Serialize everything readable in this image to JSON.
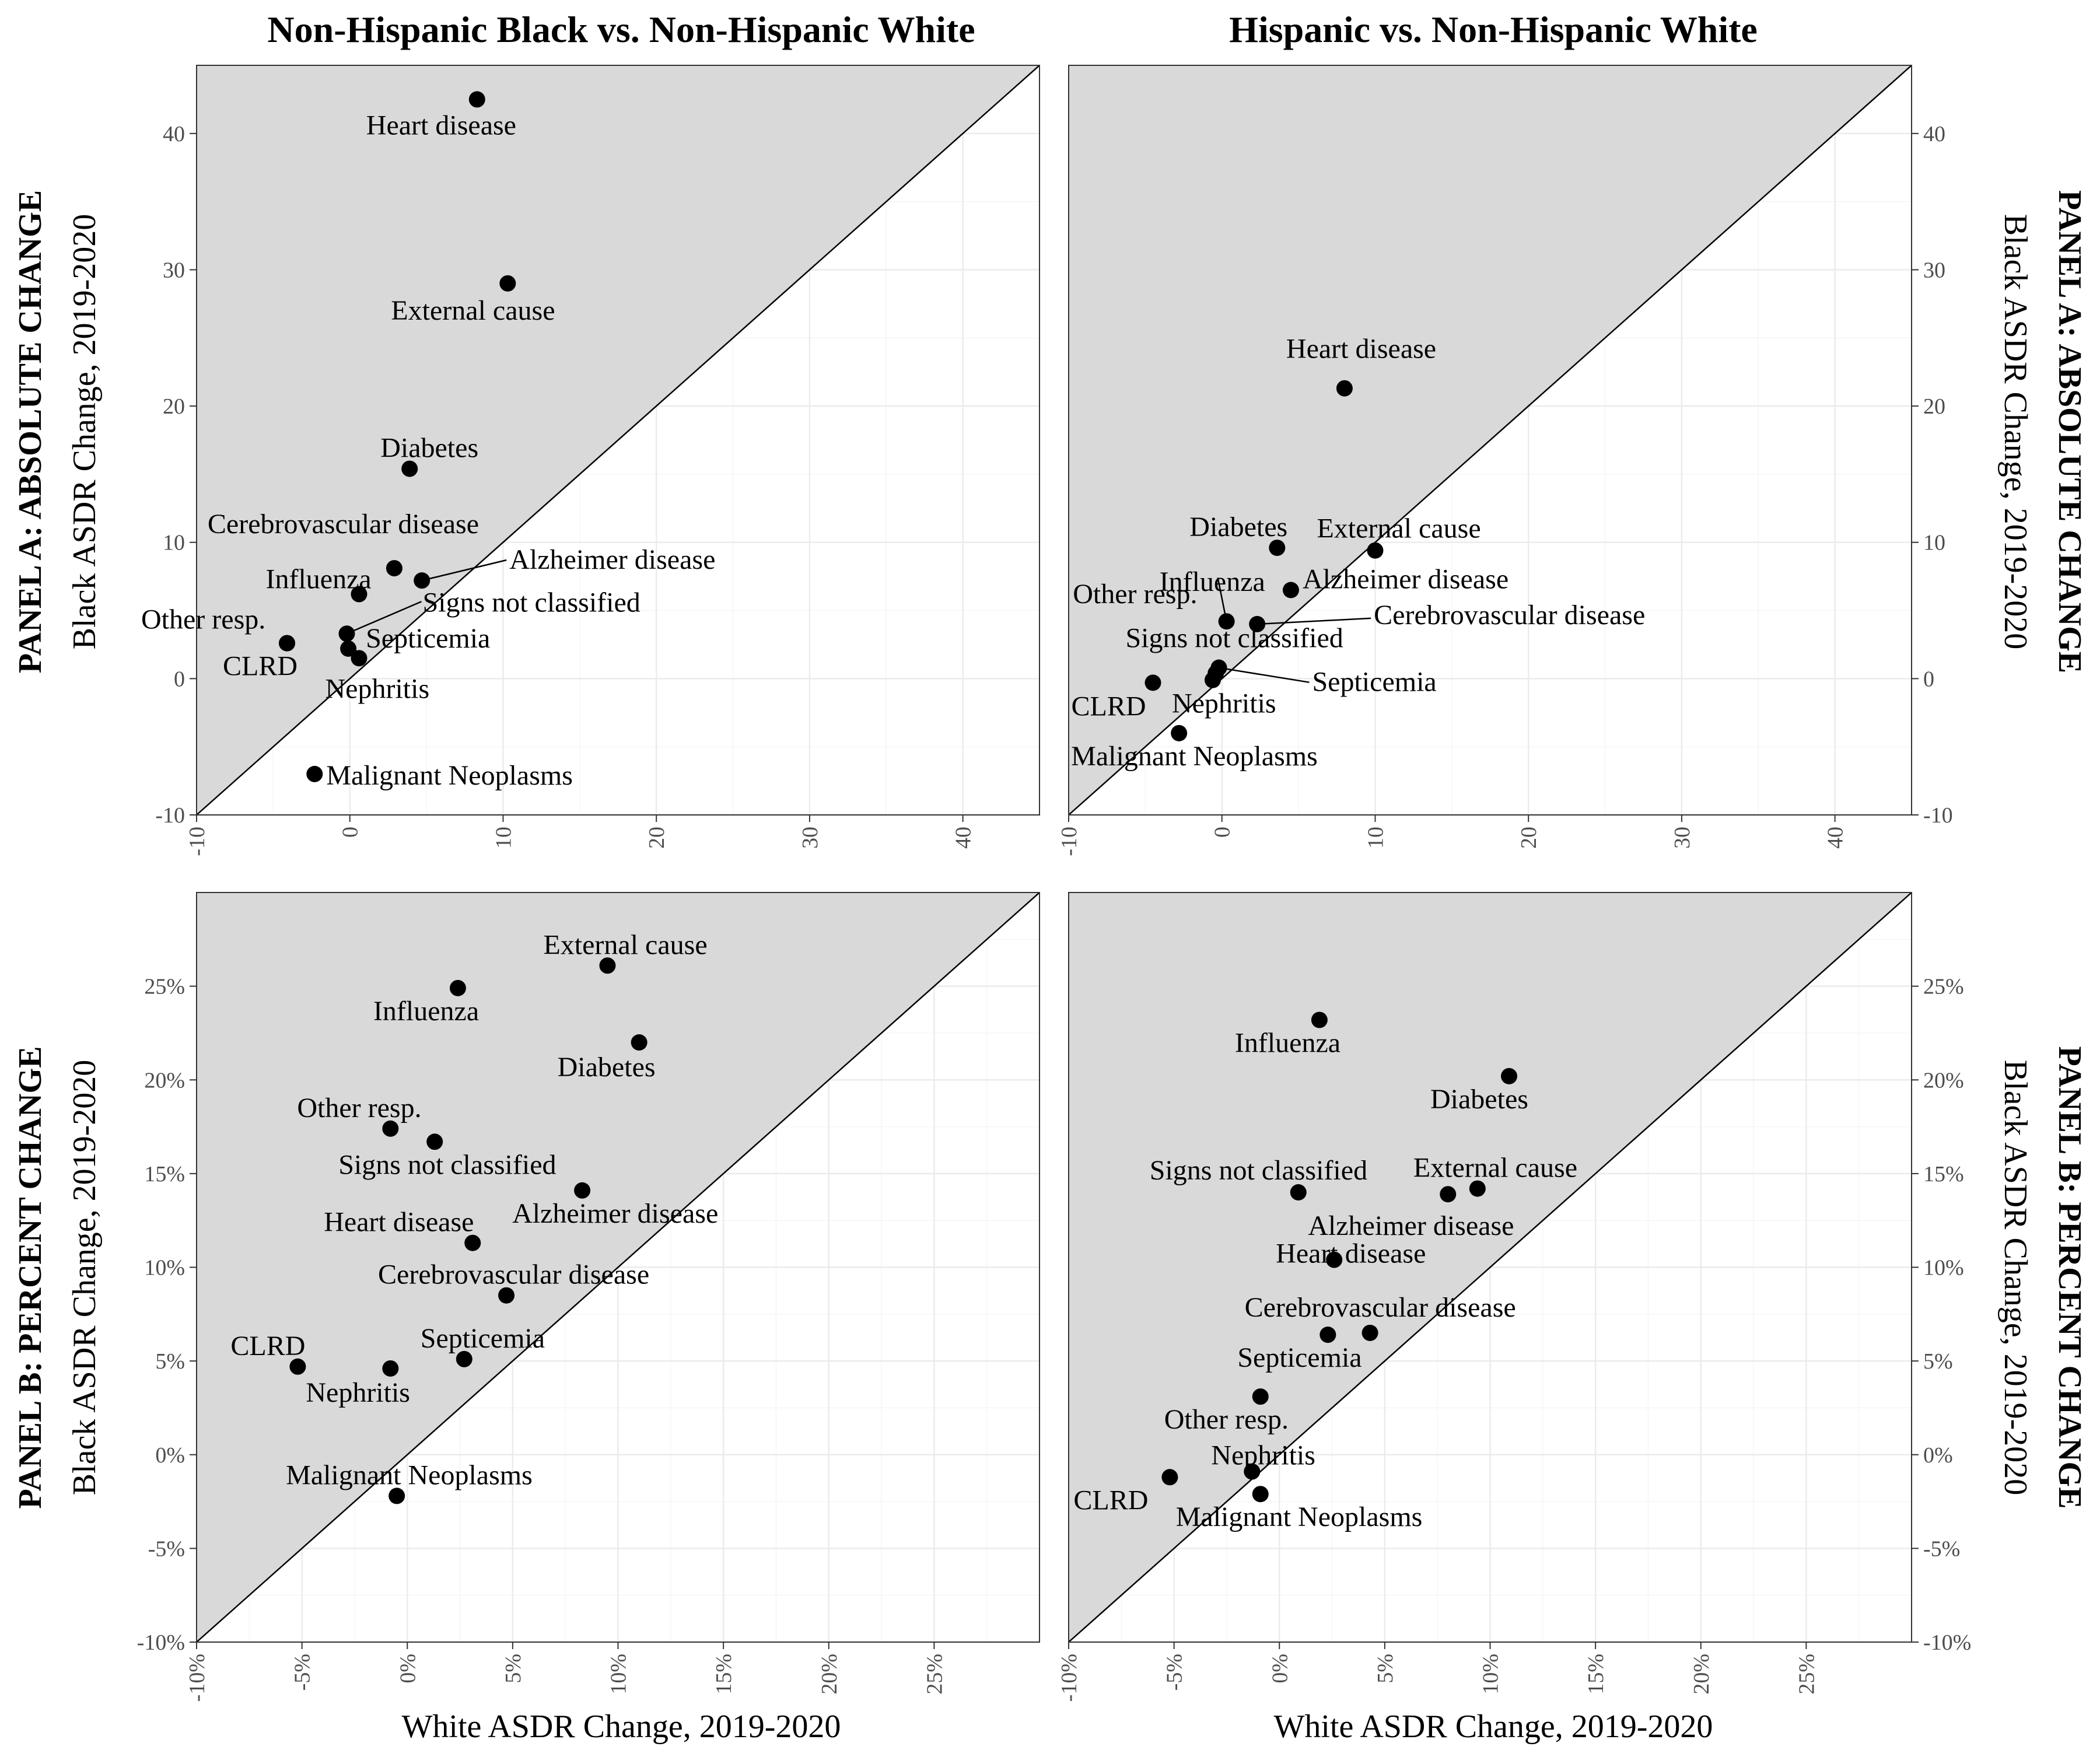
{
  "column_titles": [
    "Non-Hispanic Black vs. Non-Hispanic White",
    "Hispanic vs. Non-Hispanic White"
  ],
  "row_titles": [
    "PANEL A: ABSOLUTE CHANGE",
    "PANEL B: PERCENT CHANGE"
  ],
  "ylabel": "Black ASDR Change, 2019-2020",
  "xlabel": "White ASDR Change, 2019-2020",
  "chart_data": [
    {
      "type": "scatter",
      "panel": "Panel A, Non-Hispanic Black vs. Non-Hispanic White",
      "xlim": [
        -10,
        45
      ],
      "ylim": [
        -10,
        45
      ],
      "xticks": [
        -10,
        0,
        10,
        20,
        30,
        40
      ],
      "yticks": [
        -10,
        0,
        10,
        20,
        30,
        40
      ],
      "tick_labels": [
        "-10",
        "0",
        "10",
        "20",
        "30",
        "40"
      ],
      "reference_line": "y = x",
      "points": [
        {
          "label": "Heart disease",
          "x": 8.3,
          "y": 42.5
        },
        {
          "label": "External cause",
          "x": 10.3,
          "y": 29.0
        },
        {
          "label": "Diabetes",
          "x": 3.9,
          "y": 15.4
        },
        {
          "label": "Cerebrovascular disease",
          "x": 2.9,
          "y": 8.1
        },
        {
          "label": "Alzheimer disease",
          "x": 4.7,
          "y": 7.2
        },
        {
          "label": "Influenza",
          "x": 0.6,
          "y": 6.2
        },
        {
          "label": "Signs not classified",
          "x": -0.2,
          "y": 3.3
        },
        {
          "label": "Other resp.",
          "x": -4.1,
          "y": 2.6
        },
        {
          "label": "Septicemia",
          "x": -0.1,
          "y": 2.2
        },
        {
          "label": "Nephritis",
          "x": 0.6,
          "y": 1.5
        },
        {
          "label": "CLRD",
          "x": -4.1,
          "y": 2.6
        },
        {
          "label": "Malignant Neoplasms",
          "x": -2.3,
          "y": -7.0
        }
      ]
    },
    {
      "type": "scatter",
      "panel": "Panel A, Hispanic vs. Non-Hispanic White",
      "xlim": [
        -10,
        45
      ],
      "ylim": [
        -10,
        45
      ],
      "xticks": [
        -10,
        0,
        10,
        20,
        30,
        40
      ],
      "yticks": [
        -10,
        0,
        10,
        20,
        30,
        40
      ],
      "tick_labels": [
        "-10",
        "0",
        "10",
        "20",
        "30",
        "40"
      ],
      "reference_line": "y = x",
      "points": [
        {
          "label": "Heart disease",
          "x": 8.0,
          "y": 21.3
        },
        {
          "label": "Diabetes",
          "x": 3.6,
          "y": 9.6
        },
        {
          "label": "External cause",
          "x": 10.0,
          "y": 9.4
        },
        {
          "label": "Alzheimer disease",
          "x": 4.5,
          "y": 6.5
        },
        {
          "label": "Influenza",
          "x": 0.3,
          "y": 4.2
        },
        {
          "label": "Cerebrovascular disease",
          "x": 2.3,
          "y": 4.0
        },
        {
          "label": "Other resp.",
          "x": -0.4,
          "y": 0.4
        },
        {
          "label": "Signs not classified",
          "x": -0.2,
          "y": 0.8
        },
        {
          "label": "Septicemia",
          "x": -0.2,
          "y": 0.8
        },
        {
          "label": "Nephritis",
          "x": -0.6,
          "y": -0.1
        },
        {
          "label": "CLRD",
          "x": -4.5,
          "y": -0.3
        },
        {
          "label": "Malignant Neoplasms",
          "x": -2.8,
          "y": -4.0
        }
      ]
    },
    {
      "type": "scatter",
      "panel": "Panel B, Non-Hispanic Black vs. Non-Hispanic White",
      "xlim": [
        -10,
        30
      ],
      "ylim": [
        -10,
        30
      ],
      "xticks": [
        -10,
        -5,
        0,
        5,
        10,
        15,
        20,
        25
      ],
      "yticks": [
        -10,
        -5,
        0,
        5,
        10,
        15,
        20,
        25
      ],
      "tick_labels": [
        "-10%",
        "-5%",
        "0%",
        "5%",
        "10%",
        "15%",
        "20%",
        "25%"
      ],
      "reference_line": "y = x",
      "points": [
        {
          "label": "External cause",
          "x": 9.5,
          "y": 26.1
        },
        {
          "label": "Influenza",
          "x": 2.4,
          "y": 24.9
        },
        {
          "label": "Diabetes",
          "x": 11.0,
          "y": 22.0
        },
        {
          "label": "Other resp.",
          "x": -0.8,
          "y": 17.4
        },
        {
          "label": "Signs not classified",
          "x": 1.3,
          "y": 16.7
        },
        {
          "label": "Alzheimer disease",
          "x": 8.3,
          "y": 14.1
        },
        {
          "label": "Heart disease",
          "x": 3.1,
          "y": 11.3
        },
        {
          "label": "Cerebrovascular disease",
          "x": 4.7,
          "y": 8.5
        },
        {
          "label": "Septicemia",
          "x": 2.7,
          "y": 5.1
        },
        {
          "label": "CLRD",
          "x": -5.2,
          "y": 4.7
        },
        {
          "label": "Nephritis",
          "x": -0.8,
          "y": 4.6
        },
        {
          "label": "Malignant Neoplasms",
          "x": -0.5,
          "y": -2.2
        }
      ]
    },
    {
      "type": "scatter",
      "panel": "Panel B, Hispanic vs. Non-Hispanic White",
      "xlim": [
        -10,
        30
      ],
      "ylim": [
        -10,
        30
      ],
      "xticks": [
        -10,
        -5,
        0,
        5,
        10,
        15,
        20,
        25
      ],
      "yticks": [
        -10,
        -5,
        0,
        5,
        10,
        15,
        20,
        25
      ],
      "tick_labels": [
        "-10%",
        "-5%",
        "0%",
        "5%",
        "10%",
        "15%",
        "20%",
        "25%"
      ],
      "reference_line": "y = x",
      "points": [
        {
          "label": "Influenza",
          "x": 1.9,
          "y": 23.2
        },
        {
          "label": "Diabetes",
          "x": 10.9,
          "y": 20.2
        },
        {
          "label": "Signs not classified",
          "x": 0.9,
          "y": 14.0
        },
        {
          "label": "External cause",
          "x": 9.4,
          "y": 14.2
        },
        {
          "label": "Alzheimer disease",
          "x": 8.0,
          "y": 13.9
        },
        {
          "label": "Heart disease",
          "x": 2.6,
          "y": 10.4
        },
        {
          "label": "Cerebrovascular disease",
          "x": 4.3,
          "y": 6.5
        },
        {
          "label": "Septicemia",
          "x": 2.3,
          "y": 6.4
        },
        {
          "label": "Other resp.",
          "x": -0.9,
          "y": 3.1
        },
        {
          "label": "Nephritis",
          "x": -1.3,
          "y": -0.9
        },
        {
          "label": "CLRD",
          "x": -5.2,
          "y": -1.2
        },
        {
          "label": "Malignant Neoplasms",
          "x": -0.9,
          "y": -2.1
        }
      ]
    }
  ]
}
